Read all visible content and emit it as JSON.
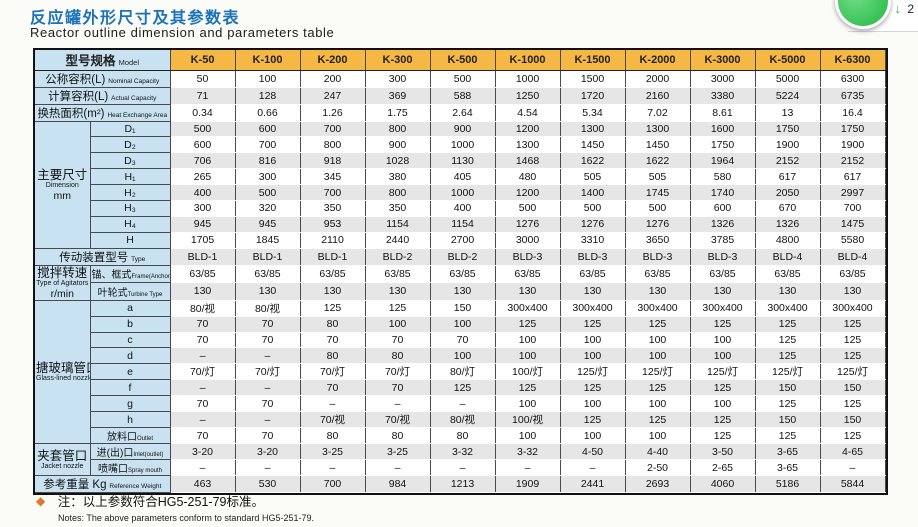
{
  "page": {
    "title_zh": "反应罐外形尺寸及其参数表",
    "title_en": "Reactor outline dimension and parameters table"
  },
  "badge": {
    "arrow": "↓",
    "count": "2"
  },
  "note": {
    "diamond": "◆",
    "zh": "注：以上参数符合HG5-251-79标准。",
    "en": "Notes: The above parameters conform to standard HG5-251-79."
  },
  "colors": {
    "title_blue": "#1b72b8",
    "header_orange": "#f6b844",
    "label_blue": "#c8e2f2",
    "stripe_gray": "#e6e6e6",
    "note_orange": "#e4762a",
    "fab_green": "#38c257"
  },
  "table": {
    "header_label_zh": "型号规格",
    "header_label_en": "Model",
    "columns": [
      "K-50",
      "K-100",
      "K-200",
      "K-300",
      "K-500",
      "K-1000",
      "K-1500",
      "K-2000",
      "K-3000",
      "K-5000",
      "K-6300"
    ],
    "rows": [
      {
        "full": true,
        "zh": "公称容积(L)",
        "en": "Nominal Capacity",
        "values": [
          "50",
          "100",
          "200",
          "300",
          "500",
          "1000",
          "1500",
          "2000",
          "3000",
          "5000",
          "6300"
        ]
      },
      {
        "full": true,
        "zh": "计算容积(L)",
        "en": "Actual Capacity",
        "values": [
          "71",
          "128",
          "247",
          "369",
          "588",
          "1250",
          "1720",
          "2160",
          "3380",
          "5224",
          "6735"
        ]
      },
      {
        "full": true,
        "zh": "换热面积(m²)",
        "en": "Heat Exchange Area",
        "values": [
          "0.34",
          "0.66",
          "1.26",
          "1.75",
          "2.64",
          "4.54",
          "5.34",
          "7.02",
          "8.61",
          "13",
          "16.4"
        ]
      },
      {
        "group": {
          "zh": "主要尺寸",
          "en": "Dimension",
          "unit": "mm",
          "rowspan": 8
        },
        "sub": "D₁",
        "values": [
          "500",
          "600",
          "700",
          "800",
          "900",
          "1200",
          "1300",
          "1300",
          "1600",
          "1750",
          "1750"
        ]
      },
      {
        "sub": "D₂",
        "values": [
          "600",
          "700",
          "800",
          "900",
          "1000",
          "1300",
          "1450",
          "1450",
          "1750",
          "1900",
          "1900"
        ]
      },
      {
        "sub": "D₃",
        "values": [
          "706",
          "816",
          "918",
          "1028",
          "1130",
          "1468",
          "1622",
          "1622",
          "1964",
          "2152",
          "2152"
        ]
      },
      {
        "sub": "H₁",
        "values": [
          "265",
          "300",
          "345",
          "380",
          "405",
          "480",
          "505",
          "505",
          "580",
          "617",
          "617"
        ]
      },
      {
        "sub": "H₂",
        "values": [
          "400",
          "500",
          "700",
          "800",
          "1000",
          "1200",
          "1400",
          "1745",
          "1740",
          "2050",
          "2997"
        ]
      },
      {
        "sub": "H₃",
        "values": [
          "300",
          "320",
          "350",
          "350",
          "400",
          "500",
          "500",
          "500",
          "600",
          "670",
          "700"
        ]
      },
      {
        "sub": "H₄",
        "values": [
          "945",
          "945",
          "953",
          "1154",
          "1154",
          "1276",
          "1276",
          "1276",
          "1326",
          "1326",
          "1475"
        ]
      },
      {
        "sub": "H",
        "values": [
          "1705",
          "1845",
          "2110",
          "2440",
          "2700",
          "3000",
          "3310",
          "3650",
          "3785",
          "4800",
          "5580"
        ]
      },
      {
        "full": true,
        "zh": "传动装置型号",
        "en": "Type",
        "values": [
          "BLD-1",
          "BLD-1",
          "BLD-1",
          "BLD-2",
          "BLD-2",
          "BLD-3",
          "BLD-3",
          "BLD-3",
          "BLD-3",
          "BLD-4",
          "BLD-4"
        ]
      },
      {
        "group": {
          "zh": "搅拌转速",
          "en": "Type of Agitators",
          "unit": "r/min",
          "rowspan": 2
        },
        "sub_zh": "锚、框式",
        "sub_en": "Frame(Anchor)Type",
        "values": [
          "63/85",
          "63/85",
          "63/85",
          "63/85",
          "63/85",
          "63/85",
          "63/85",
          "63/85",
          "63/85",
          "63/85",
          "63/85"
        ]
      },
      {
        "sub_zh": "叶轮式",
        "sub_en": "Turbine Type",
        "values": [
          "130",
          "130",
          "130",
          "130",
          "130",
          "130",
          "130",
          "130",
          "130",
          "130",
          "130"
        ]
      },
      {
        "group": {
          "zh": "搪玻璃管口",
          "en": "Glass-lined nozzle",
          "unit": "",
          "rowspan": 9
        },
        "sub": "a",
        "values": [
          "80/视",
          "80/视",
          "125",
          "125",
          "150",
          "300x400",
          "300x400",
          "300x400",
          "300x400",
          "300x400",
          "300x400"
        ]
      },
      {
        "sub": "b",
        "values": [
          "70",
          "70",
          "80",
          "100",
          "100",
          "125",
          "125",
          "125",
          "125",
          "125",
          "125"
        ]
      },
      {
        "sub": "c",
        "values": [
          "70",
          "70",
          "70",
          "70",
          "70",
          "100",
          "100",
          "100",
          "100",
          "125",
          "125"
        ]
      },
      {
        "sub": "d",
        "values": [
          "–",
          "–",
          "80",
          "80",
          "100",
          "100",
          "100",
          "100",
          "100",
          "125",
          "125"
        ]
      },
      {
        "sub": "e",
        "values": [
          "70/灯",
          "70/灯",
          "70/灯",
          "70/灯",
          "80/灯",
          "100/灯",
          "125/灯",
          "125/灯",
          "125/灯",
          "125/灯",
          "125/灯"
        ]
      },
      {
        "sub": "f",
        "values": [
          "–",
          "–",
          "70",
          "70",
          "125",
          "125",
          "125",
          "125",
          "125",
          "150",
          "150"
        ]
      },
      {
        "sub": "g",
        "values": [
          "70",
          "70",
          "–",
          "–",
          "–",
          "100",
          "100",
          "100",
          "100",
          "125",
          "125"
        ]
      },
      {
        "sub": "h",
        "values": [
          "–",
          "–",
          "70/视",
          "70/视",
          "80/视",
          "100/视",
          "125",
          "125",
          "125",
          "150",
          "150"
        ]
      },
      {
        "sub_zh": "放料口",
        "sub_en": "Outlet",
        "values": [
          "70",
          "70",
          "80",
          "80",
          "80",
          "100",
          "100",
          "100",
          "125",
          "125",
          "125"
        ]
      },
      {
        "group": {
          "zh": "夹套管口",
          "en": "Jacket nozzle",
          "unit": "",
          "rowspan": 2
        },
        "sub_zh": "进(出)口",
        "sub_en": "Inlet(outlet)",
        "values": [
          "3-20",
          "3-20",
          "3-25",
          "3-25",
          "3-32",
          "3-32",
          "4-50",
          "4-40",
          "3-50",
          "3-65",
          "4-65"
        ]
      },
      {
        "sub_zh": "喷嘴口",
        "sub_en": "Spray mouth",
        "values": [
          "–",
          "–",
          "–",
          "–",
          "–",
          "–",
          "–",
          "2-50",
          "2-65",
          "3-65",
          "–"
        ]
      },
      {
        "full": true,
        "zh": "参考重量 Kg",
        "en": "Reference Weight",
        "values": [
          "463",
          "530",
          "700",
          "984",
          "1213",
          "1909",
          "2441",
          "2693",
          "4060",
          "5186",
          "5844"
        ]
      }
    ]
  }
}
